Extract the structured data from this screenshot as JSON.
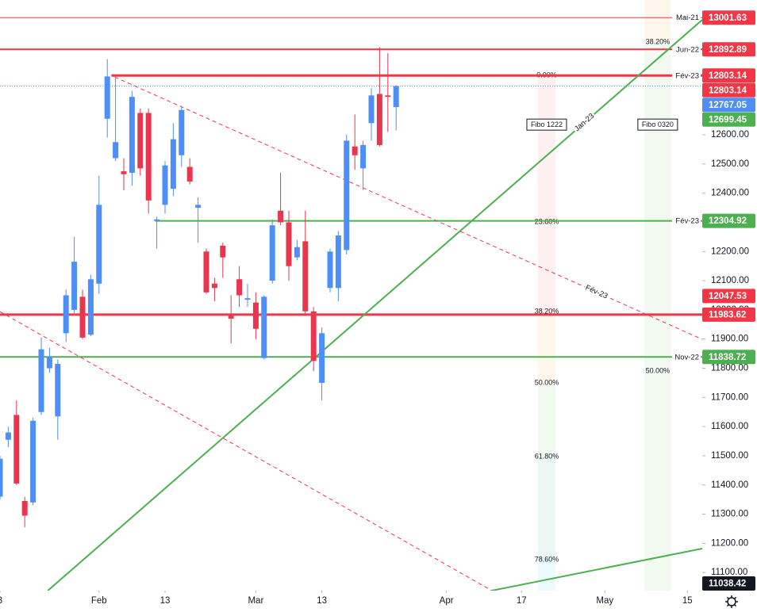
{
  "chart_data": {
    "type": "candlestick",
    "up_color": "#4e8ef7",
    "down_color": "#e9364f",
    "x": [
      0,
      1,
      2,
      3,
      4,
      5,
      6,
      7,
      8,
      9,
      10,
      11,
      12,
      13,
      14,
      15,
      16,
      17,
      18,
      19,
      20,
      21,
      22,
      23,
      24,
      25,
      26,
      27,
      28,
      29,
      30,
      31,
      32,
      33,
      34,
      35,
      36,
      37,
      38,
      39,
      40,
      41,
      42,
      43,
      44,
      45,
      46,
      47,
      48
    ],
    "open": [
      11360,
      11555,
      11640,
      11345,
      11340,
      11650,
      11800,
      11635,
      11920,
      12000,
      12045,
      11915,
      12090,
      12655,
      12520,
      12475,
      12470,
      12675,
      12675,
      12305,
      12360,
      12415,
      12530,
      12490,
      12350,
      12200,
      12090,
      12220,
      11980,
      12105,
      12035,
      12025,
      11835,
      12100,
      12340,
      12300,
      12180,
      12235,
      11995,
      11750,
      12075,
      12075,
      12205,
      12560,
      12485,
      12640,
      12740,
      12735,
      12695
    ],
    "high": [
      11500,
      11600,
      11690,
      11360,
      11630,
      11905,
      11870,
      11830,
      12070,
      12250,
      12070,
      12120,
      12460,
      12860,
      12800,
      12520,
      12750,
      12690,
      12690,
      12320,
      12510,
      12640,
      12700,
      12520,
      12385,
      12210,
      12110,
      12230,
      12050,
      12150,
      12090,
      12060,
      12050,
      12310,
      12470,
      12340,
      12240,
      12340,
      12010,
      11940,
      12210,
      12270,
      12600,
      12670,
      12580,
      12760,
      12900,
      12880,
      12770
    ],
    "low": [
      11350,
      11530,
      11400,
      11255,
      11330,
      11640,
      11785,
      11555,
      11890,
      11980,
      11900,
      11910,
      12055,
      12590,
      12510,
      12410,
      12425,
      12460,
      12330,
      12210,
      12330,
      12390,
      12490,
      12430,
      12230,
      12055,
      12030,
      12110,
      11885,
      12010,
      12010,
      11900,
      11830,
      12090,
      12290,
      12100,
      12170,
      11980,
      11790,
      11690,
      12060,
      12030,
      12190,
      12480,
      12410,
      12580,
      12560,
      12610,
      12615
    ],
    "close": [
      11490,
      11580,
      11405,
      11295,
      11620,
      11865,
      11840,
      11815,
      12050,
      12165,
      11905,
      12105,
      12360,
      12800,
      12575,
      12465,
      12730,
      12485,
      12375,
      12310,
      12495,
      12585,
      12685,
      12440,
      12360,
      12060,
      12075,
      12180,
      11970,
      12050,
      12040,
      11935,
      12045,
      12290,
      12300,
      12150,
      12215,
      11995,
      11825,
      11920,
      12200,
      12255,
      12580,
      12530,
      12565,
      12735,
      12565,
      12730,
      12767
    ],
    "xlim": [
      0,
      85.1
    ],
    "ylim": [
      11038,
      13062
    ],
    "xticks": [
      {
        "value": 0,
        "label": "3"
      },
      {
        "value": 12,
        "label": "Feb"
      },
      {
        "value": 20,
        "label": "13"
      },
      {
        "value": 31,
        "label": "Mar"
      },
      {
        "value": 39,
        "label": "13"
      },
      {
        "value": 54.1,
        "label": "Apr"
      },
      {
        "value": 63.2,
        "label": "17"
      },
      {
        "value": 73.3,
        "label": "May"
      },
      {
        "value": 83.3,
        "label": "15"
      }
    ],
    "yticks": [
      {
        "value": 12600,
        "label": "12600.00"
      },
      {
        "value": 12500,
        "label": "12500.00"
      },
      {
        "value": 12400,
        "label": "12400.00"
      },
      {
        "value": 12200,
        "label": "12200.00"
      },
      {
        "value": 12100,
        "label": "12100.00"
      },
      {
        "value": 12000,
        "label": "12000.00"
      },
      {
        "value": 11900,
        "label": "11900.00"
      },
      {
        "value": 11800,
        "label": "11800.00"
      },
      {
        "value": 11700,
        "label": "11700.00"
      },
      {
        "value": 11600,
        "label": "11600.00"
      },
      {
        "value": 11500,
        "label": "11500.00"
      },
      {
        "value": 11400,
        "label": "11400.00"
      },
      {
        "value": 11300,
        "label": "11300.00"
      },
      {
        "value": 11200,
        "label": "11200.00"
      },
      {
        "value": 11100,
        "label": "11100.00"
      }
    ],
    "levels": [
      {
        "value": 13001.63,
        "label": "Mai-21",
        "color": "#f23645",
        "width": 1
      },
      {
        "value": 12892.89,
        "label": "Jun-22",
        "color": "#f23645",
        "width": 2
      },
      {
        "value": 12803.14,
        "label": "Fév-23",
        "color": "#f23645",
        "width": 3,
        "start": 13.5
      },
      {
        "value": 12767.05,
        "color": "#4e8ef7",
        "width": 1,
        "dotted": true
      },
      {
        "value": 12304.92,
        "label": "Fév-23",
        "color": "#4caf50",
        "width": 2,
        "start": 18.8
      },
      {
        "value": 11983.62,
        "color": "#f23645",
        "width": 3
      },
      {
        "value": 11838.72,
        "label": "Nov-22",
        "color": "#4caf50",
        "width": 2
      }
    ],
    "price_labels": [
      {
        "value": 13001.63,
        "color": "#f23645"
      },
      {
        "value": 12892.89,
        "color": "#f23645"
      },
      {
        "value": 12803.14,
        "color": "#f23645"
      },
      {
        "value": 12803.14,
        "color": "#f23645"
      },
      {
        "value": 12767.05,
        "color": "#4e8ef7"
      },
      {
        "value": 12699.45,
        "color": "#4caf50"
      },
      {
        "value": 12304.92,
        "color": "#4caf50"
      },
      {
        "value": 12047.53,
        "color": "#f23645"
      },
      {
        "value": 11983.62,
        "color": "#f23645"
      },
      {
        "value": 11838.72,
        "color": "#4caf50"
      },
      {
        "value": 11038.42,
        "color": "#131722"
      }
    ],
    "trendlines": [
      {
        "points": [
          [
            5.8,
            11038
          ],
          [
            85.1,
            12994
          ]
        ],
        "color": "#4caf50",
        "label": "Jan-23"
      },
      {
        "points": [
          [
            59.6,
            11038
          ],
          [
            85.1,
            11182
          ]
        ],
        "color": "#4caf50"
      },
      {
        "points": [
          [
            13.9,
            12798
          ],
          [
            85.1,
            11899
          ]
        ],
        "color": "#f23645",
        "dashed": true,
        "label": "Fév-23"
      },
      {
        "points": [
          [
            0,
            11994
          ],
          [
            59.6,
            11038
          ]
        ],
        "color": "#f23645",
        "dashed": true
      }
    ],
    "fibs": [
      {
        "label": "Fibo 1222",
        "label_price": 12635,
        "x": [
          65.2,
          67.3
        ],
        "levels": [
          {
            "price": 12803,
            "label": "0.00%",
            "color": "#f23645"
          },
          {
            "price": 12301,
            "label": "23.60%",
            "color": "#f23645"
          },
          {
            "price": 11994,
            "label": "38.20%",
            "color": "#ff9800"
          },
          {
            "price": 11749,
            "label": "50.00%",
            "color": "#4caf50"
          },
          {
            "price": 11497,
            "label": "61.80%",
            "color": "#089981"
          },
          {
            "price": 11143,
            "label": "78.60%",
            "color": "#00bcd4"
          }
        ]
      },
      {
        "label": "Fibo 0320",
        "label_price": 12635,
        "x": [
          78.1,
          81.3
        ],
        "levels": [
          {
            "price": 12918,
            "label": "38.20%",
            "color": "#ff9800"
          },
          {
            "price": 11790,
            "label": "50.00%",
            "color": "#4caf50"
          }
        ]
      }
    ]
  }
}
